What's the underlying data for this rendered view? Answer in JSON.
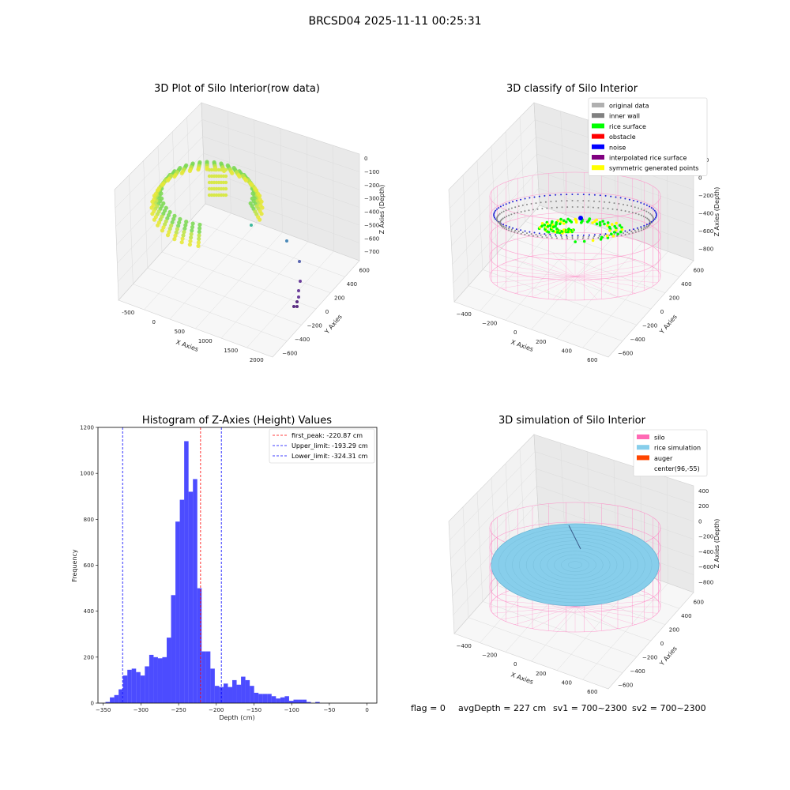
{
  "suptitle": "BRCSD04 2025-11-11 00:25:31",
  "footer": {
    "flag": "flag = 0",
    "avg_depth": "avgDepth = 227 cm",
    "sv1": "sv1 = 700~2300",
    "sv2": "sv2 = 700~2300"
  },
  "panel_raw": {
    "title": "3D Plot of Silo Interior(row data)",
    "xlabel": "X Axies",
    "ylabel": "Y Axies",
    "zlabel": "Z Axies (Depth)",
    "x_ticks": [
      "-500",
      "0",
      "500",
      "1000",
      "1500",
      "2000"
    ],
    "y_ticks": [
      "600",
      "400",
      "200",
      "0",
      "−200",
      "−400",
      "−600"
    ],
    "z_ticks": [
      "0",
      "−100",
      "−200",
      "−300",
      "−400",
      "−500",
      "−600",
      "−700"
    ]
  },
  "panel_classify": {
    "title": "3D classify of Silo Interior",
    "xlabel": "X Axies",
    "ylabel": "Y Axies",
    "zlabel": "Z Axies (Depth)",
    "x_ticks": [
      "−400",
      "−200",
      "0",
      "200",
      "400",
      "600"
    ],
    "y_ticks": [
      "600",
      "400",
      "200",
      "0",
      "−200",
      "−400",
      "−600"
    ],
    "z_ticks": [
      "200",
      "0",
      "−200",
      "−400",
      "−600",
      "−800"
    ],
    "legend": [
      {
        "label": "original data",
        "color": "#b0b0b0"
      },
      {
        "label": "inner wall",
        "color": "#808080"
      },
      {
        "label": "rice surface",
        "color": "#00ff00"
      },
      {
        "label": "obstacle",
        "color": "#ff0000"
      },
      {
        "label": "noise",
        "color": "#0000ff"
      },
      {
        "label": "interpolated rice surface",
        "color": "#800080"
      },
      {
        "label": "symmetric generated points",
        "color": "#ffff00"
      }
    ]
  },
  "panel_sim": {
    "title": "3D simulation of Silo Interior",
    "xlabel": "X Axies",
    "ylabel": "Y Axies",
    "zlabel": "Z Axies (Depth)",
    "x_ticks": [
      "−400",
      "−200",
      "0",
      "200",
      "400",
      "600"
    ],
    "y_ticks": [
      "600",
      "400",
      "200",
      "0",
      "−200",
      "−400",
      "−600"
    ],
    "z_ticks": [
      "400",
      "200",
      "0",
      "−200",
      "−400",
      "−600",
      "−800"
    ],
    "legend": [
      {
        "label": "silo",
        "color": "#ff69b4"
      },
      {
        "label": "rice simulation",
        "color": "#87ceeb"
      },
      {
        "label": "auger",
        "color": "#ff4500"
      },
      {
        "label": "center(96,-55)",
        "color": "#ffffff"
      }
    ]
  },
  "chart_data": [
    {
      "type": "bar",
      "title": "Histogram of Z-Axies (Height) Values",
      "xlabel": "Depth (cm)",
      "ylabel": "Frequency",
      "xlim": [
        -357,
        13
      ],
      "ylim": [
        0,
        1200
      ],
      "x_ticks": [
        -350,
        -300,
        -250,
        -200,
        -150,
        -100,
        -50,
        0
      ],
      "y_ticks": [
        0,
        200,
        400,
        600,
        800,
        1000,
        1200
      ],
      "bin_start": -347,
      "bin_width": 5.8,
      "values": [
        5,
        25,
        35,
        60,
        120,
        145,
        150,
        135,
        120,
        160,
        210,
        200,
        195,
        200,
        285,
        470,
        790,
        885,
        1140,
        920,
        975,
        500,
        225,
        225,
        150,
        75,
        70,
        85,
        70,
        100,
        80,
        115,
        100,
        75,
        45,
        40,
        40,
        40,
        30,
        20,
        25,
        30,
        10,
        15,
        15,
        15,
        5,
        0,
        5,
        0
      ],
      "color": "#0000ff",
      "vlines": [
        {
          "label": "first_peak: -220.87 cm",
          "x": -220.87,
          "color": "#ff0000"
        },
        {
          "label": "Upper_limit: -193.29 cm",
          "x": -193.29,
          "color": "#0000ff"
        },
        {
          "label": "Lower_limit: -324.31 cm",
          "x": -324.31,
          "color": "#0000ff"
        }
      ],
      "legend_position": "upper right"
    }
  ]
}
